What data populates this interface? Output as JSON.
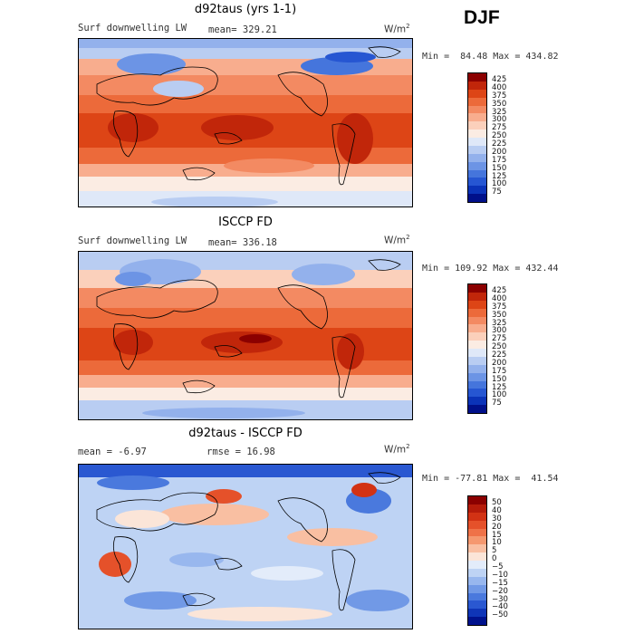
{
  "season": "DJF",
  "panels": [
    {
      "title": "d92taus (yrs 1-1)",
      "subtitle": "Surf downwelling LW",
      "mean_text": "mean= 329.21",
      "units": "W/m",
      "units_sup": "2",
      "stats": "Min =  84.48 Max = 434.82",
      "colorbar": {
        "labels": [
          "425",
          "400",
          "375",
          "350",
          "325",
          "300",
          "275",
          "250",
          "225",
          "200",
          "175",
          "150",
          "125",
          "100",
          "75"
        ],
        "colors": [
          "#8b0000",
          "#c1260a",
          "#dd4516",
          "#ec6a3a",
          "#f38a62",
          "#f8ad8e",
          "#fbd0bb",
          "#fbece3",
          "#dfe8f8",
          "#b9cdf2",
          "#93b1ec",
          "#6c94e5",
          "#4575dc",
          "#2656d2",
          "#0b33b8",
          "#00108a"
        ]
      }
    },
    {
      "title": "ISCCP FD",
      "subtitle": "Surf downwelling LW",
      "mean_text": "mean= 336.18",
      "units": "W/m",
      "units_sup": "2",
      "stats": "Min = 109.92 Max = 432.44",
      "colorbar": {
        "labels": [
          "425",
          "400",
          "375",
          "350",
          "325",
          "300",
          "275",
          "250",
          "225",
          "200",
          "175",
          "150",
          "125",
          "100",
          "75"
        ],
        "colors": [
          "#8b0000",
          "#c1260a",
          "#dd4516",
          "#ec6a3a",
          "#f38a62",
          "#f8ad8e",
          "#fbd0bb",
          "#fbece3",
          "#dfe8f8",
          "#b9cdf2",
          "#93b1ec",
          "#6c94e5",
          "#4575dc",
          "#2656d2",
          "#0b33b8",
          "#00108a"
        ]
      }
    },
    {
      "title": "d92taus - ISCCP FD",
      "subtitle": "mean =   -6.97",
      "mean_text": "rmse =   16.98",
      "units": "W/m",
      "units_sup": "2",
      "stats": "Min = -77.81 Max =  41.54",
      "colorbar": {
        "labels": [
          "50",
          "40",
          "30",
          "20",
          "15",
          "10",
          "5",
          "0",
          "−5",
          "−10",
          "−15",
          "−20",
          "−30",
          "−40",
          "−50"
        ],
        "colors": [
          "#8b0000",
          "#b51b0a",
          "#d23214",
          "#e5512a",
          "#ef7248",
          "#f5986f",
          "#f9bfa2",
          "#fbe5d8",
          "#e3ecfa",
          "#bed3f4",
          "#98b7ee",
          "#7199e6",
          "#4a79dd",
          "#2a58d1",
          "#0f35b7",
          "#00128d"
        ]
      }
    }
  ]
}
